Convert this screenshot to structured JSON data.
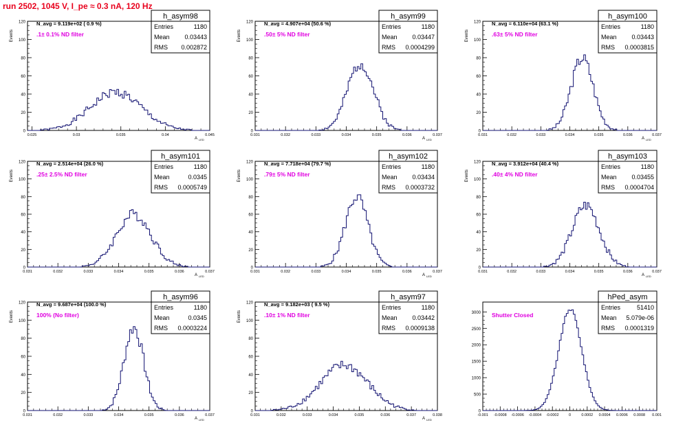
{
  "page_title": "run 2502,  1045 V, I_pe ≈ 0.3 nA, 120 Hz",
  "colors": {
    "histogram": "#101070",
    "nd_label": "#e000e0",
    "title": "#e8001c",
    "axis": "#000000"
  },
  "chart_data": [
    {
      "type": "bar",
      "name": "h_asym98",
      "ylabel": "Events",
      "xlabel": "A_{LED}",
      "xlabel_main": "A",
      "xlabel_sub": "LED",
      "xlim": [
        0.0245,
        0.045
      ],
      "ylim": [
        0,
        120
      ],
      "yticks": [
        0,
        20,
        40,
        60,
        80,
        100,
        120
      ],
      "xticks": [
        0.025,
        0.03,
        0.035,
        0.04,
        0.045
      ],
      "xtick_labels": [
        "0.025",
        "0.03",
        "0.035",
        "0.04",
        "0.045"
      ],
      "stats": {
        "Entries": "1180",
        "Mean": "0.03443",
        "RMS": "0.002872"
      },
      "navg": "N_avg = 9.119e+02 ( 0.9 %)",
      "filter_label": ".1± 0.1% ND filter",
      "shape": {
        "mean": 0.03443,
        "rms": 0.002872,
        "peak": 42,
        "bins": 100,
        "seed": 1
      }
    },
    {
      "type": "bar",
      "name": "h_asym99",
      "ylabel": "Events",
      "xlabel": "A_{LED}",
      "xlabel_main": "A",
      "xlabel_sub": "LED",
      "xlim": [
        0.031,
        0.037
      ],
      "ylim": [
        0,
        120
      ],
      "yticks": [
        0,
        20,
        40,
        60,
        80,
        100,
        120
      ],
      "xticks": [
        0.031,
        0.032,
        0.033,
        0.034,
        0.035,
        0.036,
        0.037
      ],
      "xtick_labels": [
        "0.031",
        "0.032",
        "0.033",
        "0.034",
        "0.035",
        "0.036",
        "0.037"
      ],
      "stats": {
        "Entries": "1180",
        "Mean": "0.03447",
        "RMS": "0.0004299"
      },
      "navg": "N_avg = 4.907e+04 (50.6 %)",
      "filter_label": ".50± 5% ND filter",
      "shape": {
        "mean": 0.03447,
        "rms": 0.0004299,
        "peak": 74,
        "bins": 100,
        "seed": 2
      }
    },
    {
      "type": "bar",
      "name": "h_asym100",
      "ylabel": "Events",
      "xlabel": "A_{LED}",
      "xlabel_main": "A",
      "xlabel_sub": "LED",
      "xlim": [
        0.031,
        0.037
      ],
      "ylim": [
        0,
        120
      ],
      "yticks": [
        0,
        20,
        40,
        60,
        80,
        100,
        120
      ],
      "xticks": [
        0.031,
        0.032,
        0.033,
        0.034,
        0.035,
        0.036,
        0.037
      ],
      "xtick_labels": [
        "0.031",
        "0.032",
        "0.033",
        "0.034",
        "0.035",
        "0.036",
        "0.037"
      ],
      "stats": {
        "Entries": "1180",
        "Mean": "0.03443",
        "RMS": "0.0003815"
      },
      "navg": "N_avg = 6.110e+04 (63.1 %)",
      "filter_label": ".63± 5% ND filter",
      "shape": {
        "mean": 0.03443,
        "rms": 0.0003815,
        "peak": 80,
        "bins": 100,
        "seed": 3
      }
    },
    {
      "type": "bar",
      "name": "h_asym101",
      "ylabel": "Events",
      "xlabel": "A_{LED}",
      "xlabel_main": "A",
      "xlabel_sub": "LED",
      "xlim": [
        0.031,
        0.037
      ],
      "ylim": [
        0,
        120
      ],
      "yticks": [
        0,
        20,
        40,
        60,
        80,
        100,
        120
      ],
      "xticks": [
        0.031,
        0.032,
        0.033,
        0.034,
        0.035,
        0.036,
        0.037
      ],
      "xtick_labels": [
        "0.031",
        "0.032",
        "0.033",
        "0.034",
        "0.035",
        "0.036",
        "0.037"
      ],
      "stats": {
        "Entries": "1180",
        "Mean": "0.0345",
        "RMS": "0.0005749"
      },
      "navg": "N_avg = 2.514e+04 (26.0 %)",
      "filter_label": ".25± 2.5% ND filter",
      "shape": {
        "mean": 0.0345,
        "rms": 0.0005749,
        "peak": 60,
        "bins": 100,
        "seed": 4
      }
    },
    {
      "type": "bar",
      "name": "h_asym102",
      "ylabel": "Events",
      "xlabel": "A_{LED}",
      "xlabel_main": "A",
      "xlabel_sub": "LED",
      "xlim": [
        0.031,
        0.037
      ],
      "ylim": [
        0,
        120
      ],
      "yticks": [
        0,
        20,
        40,
        60,
        80,
        100,
        120
      ],
      "xticks": [
        0.031,
        0.032,
        0.033,
        0.034,
        0.035,
        0.036,
        0.037
      ],
      "xtick_labels": [
        "0.031",
        "0.032",
        "0.033",
        "0.034",
        "0.035",
        "0.036",
        "0.037"
      ],
      "stats": {
        "Entries": "1180",
        "Mean": "0.03434",
        "RMS": "0.0003732"
      },
      "navg": "N_avg = 7.718e+04 (79.7 %)",
      "filter_label": ".79± 5% ND filter",
      "shape": {
        "mean": 0.03434,
        "rms": 0.0003732,
        "peak": 80,
        "bins": 100,
        "seed": 5
      }
    },
    {
      "type": "bar",
      "name": "h_asym103",
      "ylabel": "Events",
      "xlabel": "A_{LED}",
      "xlabel_main": "A",
      "xlabel_sub": "LED",
      "xlim": [
        0.031,
        0.037
      ],
      "ylim": [
        0,
        120
      ],
      "yticks": [
        0,
        20,
        40,
        60,
        80,
        100,
        120
      ],
      "xticks": [
        0.031,
        0.032,
        0.033,
        0.034,
        0.035,
        0.036,
        0.037
      ],
      "xtick_labels": [
        "0.031",
        "0.032",
        "0.033",
        "0.034",
        "0.035",
        "0.036",
        "0.037"
      ],
      "stats": {
        "Entries": "1180",
        "Mean": "0.03455",
        "RMS": "0.0004704"
      },
      "navg": "N_avg = 3.912e+04 (40.4 %)",
      "filter_label": ".40± 4% ND filter",
      "shape": {
        "mean": 0.03455,
        "rms": 0.0004704,
        "peak": 70,
        "bins": 100,
        "seed": 6
      }
    },
    {
      "type": "bar",
      "name": "h_asym96",
      "ylabel": "Events",
      "xlabel": "A_{LED}",
      "xlabel_main": "A",
      "xlabel_sub": "LED",
      "xlim": [
        0.031,
        0.037
      ],
      "ylim": [
        0,
        120
      ],
      "yticks": [
        0,
        20,
        40,
        60,
        80,
        100,
        120
      ],
      "xticks": [
        0.031,
        0.032,
        0.033,
        0.034,
        0.035,
        0.036,
        0.037
      ],
      "xtick_labels": [
        "0.031",
        "0.032",
        "0.033",
        "0.034",
        "0.035",
        "0.036",
        "0.037"
      ],
      "stats": {
        "Entries": "1180",
        "Mean": "0.0345",
        "RMS": "0.0003224"
      },
      "navg": "N_avg = 9.687e+04 (100.0 %)",
      "filter_label": "100% (No filter)",
      "shape": {
        "mean": 0.0345,
        "rms": 0.0003224,
        "peak": 92,
        "bins": 100,
        "seed": 7
      }
    },
    {
      "type": "bar",
      "name": "h_asym97",
      "ylabel": "Events",
      "xlabel": "A_{LED}",
      "xlabel_main": "A",
      "xlabel_sub": "LED",
      "xlim": [
        0.031,
        0.038
      ],
      "ylim": [
        0,
        120
      ],
      "yticks": [
        0,
        20,
        40,
        60,
        80,
        100,
        120
      ],
      "xticks": [
        0.031,
        0.032,
        0.033,
        0.034,
        0.035,
        0.036,
        0.037,
        0.038
      ],
      "xtick_labels": [
        "0.031",
        "0.032",
        "0.033",
        "0.034",
        "0.035",
        "0.036",
        "0.037",
        "0.038"
      ],
      "stats": {
        "Entries": "1180",
        "Mean": "0.03442",
        "RMS": "0.0009138"
      },
      "navg": "N_avg = 9.182e+03 ( 9.5 %)",
      "filter_label": ".10± 1% ND filter",
      "shape": {
        "mean": 0.03442,
        "rms": 0.0009138,
        "peak": 50,
        "bins": 100,
        "seed": 8
      }
    },
    {
      "type": "bar",
      "name": "hPed_asym",
      "ylabel": "",
      "xlabel": "",
      "xlabel_main": "",
      "xlabel_sub": "",
      "xlim": [
        -0.001,
        0.001
      ],
      "ylim": [
        0,
        3300
      ],
      "yticks": [
        0,
        500,
        1000,
        1500,
        2000,
        2500,
        3000
      ],
      "xticks": [
        -0.001,
        -0.0008,
        -0.0006,
        -0.0004,
        -0.0002,
        0,
        0.0002,
        0.0004,
        0.0006,
        0.0008,
        0.001
      ],
      "xtick_labels": [
        "-0.001",
        "-0.0008",
        "-0.0006",
        "-0.0004",
        "-0.0002",
        "0",
        "0.0002",
        "0.0004",
        "0.0006",
        "0.0008",
        "0.001"
      ],
      "stats": {
        "Entries": "51410",
        "Mean": "5.079e-06",
        "RMS": "0.0001319"
      },
      "navg": "",
      "filter_label": "Shutter Closed",
      "shape": {
        "mean": 5.079e-06,
        "rms": 0.0001319,
        "peak": 3080,
        "bins": 100,
        "seed": 9
      }
    }
  ]
}
